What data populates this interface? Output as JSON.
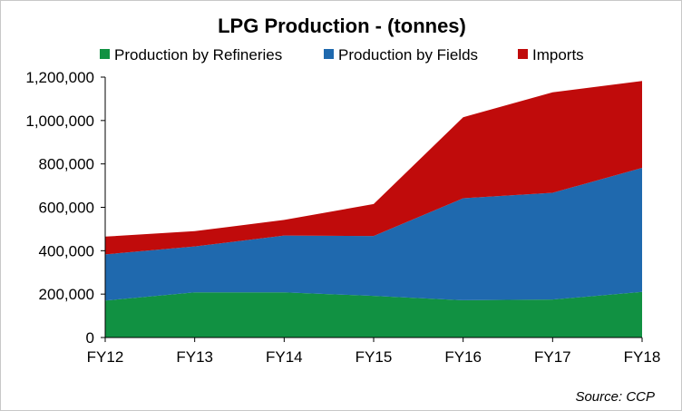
{
  "chart_data": {
    "type": "area",
    "stacked": true,
    "title": "LPG Production - (tonnes)",
    "xlabel": "",
    "ylabel": "",
    "categories": [
      "FY12",
      "FY13",
      "FY14",
      "FY15",
      "FY16",
      "FY17",
      "FY18"
    ],
    "y_ticks": [
      "0",
      "200,000",
      "400,000",
      "600,000",
      "800,000",
      "1,000,000",
      "1,200,000"
    ],
    "ylim": [
      0,
      1200000
    ],
    "grid": false,
    "legend_position": "top",
    "series": [
      {
        "name": "Production by Refineries",
        "color": "#119142",
        "values": [
          170000,
          208000,
          208000,
          192000,
          172000,
          175000,
          210000
        ]
      },
      {
        "name": "Production by Fields",
        "color": "#1f69ae",
        "values": [
          213000,
          212000,
          262000,
          276000,
          470000,
          492000,
          572000
        ]
      },
      {
        "name": "Imports",
        "color": "#c00b0b",
        "values": [
          82000,
          70000,
          72000,
          147000,
          373000,
          463000,
          400000
        ]
      }
    ],
    "source": "Source: CCP"
  }
}
